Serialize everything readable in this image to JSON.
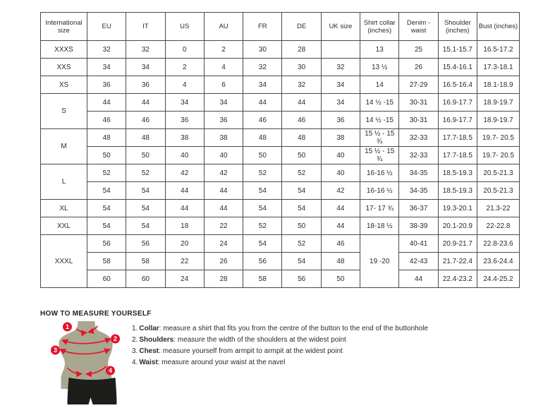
{
  "size_table": {
    "headers": [
      "International size",
      "EU",
      "IT",
      "US",
      "AU",
      "FR",
      "DE",
      "UK size",
      "Shirt collar (inches)",
      "Denim - waist",
      "Shoulder (inches)",
      "Bust (inches)"
    ],
    "groups": [
      {
        "size": "XXXS",
        "rows": [
          [
            "32",
            "32",
            "0",
            "2",
            "30",
            "28",
            "",
            "13",
            "25",
            "15.1-15.7",
            "16.5-17.2"
          ]
        ]
      },
      {
        "size": "XXS",
        "rows": [
          [
            "34",
            "34",
            "2",
            "4",
            "32",
            "30",
            "32",
            "13 ½",
            "26",
            "15.4-16.1",
            "17.3-18.1"
          ]
        ]
      },
      {
        "size": "XS",
        "rows": [
          [
            "36",
            "36",
            "4",
            "6",
            "34",
            "32",
            "34",
            "14",
            "27-29",
            "16.5-16.4",
            "18.1-18.9"
          ]
        ]
      },
      {
        "size": "S",
        "rows": [
          [
            "44",
            "44",
            "34",
            "34",
            "44",
            "44",
            "34",
            "14 ½ -15",
            "30-31",
            "16.9-17.7",
            "18.9-19.7"
          ],
          [
            "46",
            "46",
            "36",
            "36",
            "46",
            "46",
            "36",
            "14 ½ -15",
            "30-31",
            "16.9-17.7",
            "18.9-19.7"
          ]
        ]
      },
      {
        "size": "M",
        "rows": [
          [
            "48",
            "48",
            "38",
            "38",
            "48",
            "48",
            "38",
            "15 ½ - 15 ¾",
            "32-33",
            "17.7-18.5",
            "19.7- 20.5"
          ],
          [
            "50",
            "50",
            "40",
            "40",
            "50",
            "50",
            "40",
            "15 ½ - 15 ¾",
            "32-33",
            "17.7-18.5",
            "19.7- 20.5"
          ]
        ]
      },
      {
        "size": "L",
        "rows": [
          [
            "52",
            "52",
            "42",
            "42",
            "52",
            "52",
            "40",
            "16-16 ½",
            "34-35",
            "18.5-19.3",
            "20.5-21.3"
          ],
          [
            "54",
            "54",
            "44",
            "44",
            "54",
            "54",
            "42",
            "16-16 ½",
            "34-35",
            "18.5-19.3",
            "20.5-21.3"
          ]
        ]
      },
      {
        "size": "XL",
        "rows": [
          [
            "54",
            "54",
            "44",
            "44",
            "54",
            "54",
            "44",
            "17- 17 ¾",
            "36-37",
            "19.3-20.1",
            "21.3-22"
          ]
        ]
      },
      {
        "size": "XXL",
        "rows": [
          [
            "54",
            "54",
            "18",
            "22",
            "52",
            "50",
            "44",
            "18-18 ½",
            "38-39",
            "20.1-20.9",
            "22-22.8"
          ]
        ]
      },
      {
        "size": "XXXL",
        "rows": [
          [
            "56",
            "56",
            "20",
            "24",
            "54",
            "52",
            "46",
            {
              "text": "19 -20",
              "rowspan": 3
            },
            "40-41",
            "20.9-21.7",
            "22.8-23.6"
          ],
          [
            "58",
            "58",
            "22",
            "26",
            "56",
            "54",
            "48",
            null,
            "42-43",
            "21.7-22.4",
            "23.6-24.4"
          ],
          [
            "60",
            "60",
            "24",
            "28",
            "58",
            "56",
            "50",
            null,
            "44",
            "22.4-23.2",
            "24.4-25.2"
          ]
        ]
      }
    ]
  },
  "measure": {
    "title": "HOW TO MEASURE YOURSELF",
    "steps": [
      {
        "num": "1.",
        "label": "Collar",
        "text": ": measure a shirt that fits you from the centre of the button to the end of the buttonhole"
      },
      {
        "num": "2.",
        "label": "Shoulders",
        "text": ": measure the width of the shoulders at the widest point"
      },
      {
        "num": "3.",
        "label": "Chest",
        "text": ": measure yourself from armpit to armpit at the widest point"
      },
      {
        "num": "4.",
        "label": "Waist",
        "text": ": measure around your waist at the navel"
      }
    ],
    "markers": [
      "1",
      "2",
      "3",
      "4"
    ]
  },
  "colors": {
    "accent_red": "#e5132e",
    "mannequin_body": "#a9a78f",
    "mannequin_shorts": "#1d1d1b",
    "table_border": "#4a4a4a",
    "text": "#2b2b2b"
  }
}
